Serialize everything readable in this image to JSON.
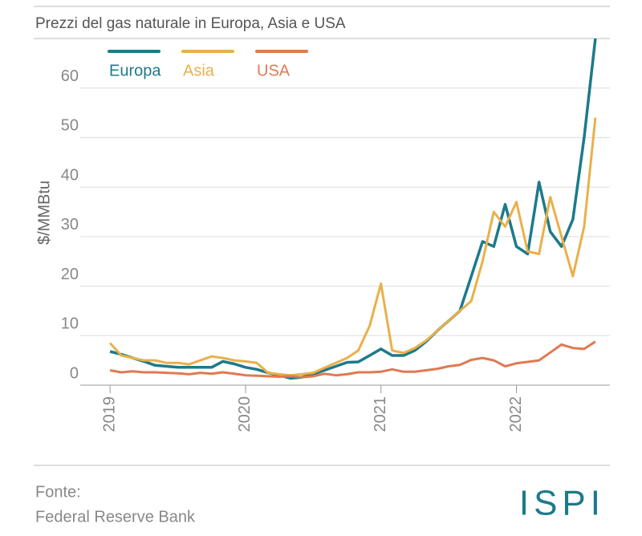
{
  "chart_data": {
    "type": "line",
    "title": "Prezzi del gas naturale  in Europa, Asia e USA",
    "y_label": "$/MMBtu",
    "source_label": "Fonte:",
    "source": "Federal Reserve Bank",
    "logo": "ISPI",
    "x": [
      2019,
      2019.083,
      2019.167,
      2019.25,
      2019.333,
      2019.417,
      2019.5,
      2019.583,
      2019.667,
      2019.75,
      2019.833,
      2019.917,
      2020,
      2020.083,
      2020.167,
      2020.25,
      2020.333,
      2020.417,
      2020.5,
      2020.583,
      2020.667,
      2020.75,
      2020.833,
      2020.917,
      2021,
      2021.083,
      2021.167,
      2021.25,
      2021.333,
      2021.417,
      2021.5,
      2021.583,
      2021.667,
      2021.75,
      2021.833,
      2021.917,
      2022,
      2022.083,
      2022.167,
      2022.25,
      2022.333,
      2022.417,
      2022.5,
      2022.583
    ],
    "series": [
      {
        "name": "Europa",
        "color": "#1d7a8a",
        "values": [
          6.8,
          6.2,
          5.5,
          4.8,
          4,
          3.8,
          3.6,
          3.6,
          3.6,
          3.6,
          4.8,
          4.3,
          3.6,
          3.2,
          2.5,
          2,
          1.4,
          1.6,
          2.2,
          3,
          3.8,
          4.6,
          4.7,
          6,
          7.3,
          6,
          6,
          7,
          8.8,
          11,
          13,
          15,
          22,
          29,
          28,
          36.5,
          28,
          26.5,
          41,
          31,
          28,
          33.5,
          50,
          70
        ]
      },
      {
        "name": "Asia",
        "color": "#e9b04a",
        "values": [
          8.5,
          6,
          5.5,
          5,
          5,
          4.5,
          4.5,
          4.2,
          5,
          5.8,
          5.5,
          5,
          4.8,
          4.5,
          2.5,
          2.2,
          2,
          2.2,
          2.5,
          3.5,
          4.5,
          5.5,
          7,
          12,
          20.5,
          7,
          6.5,
          7.5,
          9,
          11,
          13,
          15,
          17,
          25,
          35,
          32,
          37,
          27,
          26.5,
          38,
          30,
          22,
          32,
          54
        ]
      },
      {
        "name": "USA",
        "color": "#df7a51",
        "values": [
          3,
          2.6,
          2.8,
          2.6,
          2.6,
          2.5,
          2.4,
          2.2,
          2.5,
          2.3,
          2.6,
          2.3,
          2,
          1.9,
          1.8,
          1.7,
          1.8,
          1.6,
          1.8,
          2.3,
          2,
          2.2,
          2.6,
          2.6,
          2.7,
          3.2,
          2.7,
          2.7,
          3,
          3.3,
          3.8,
          4.1,
          5.1,
          5.5,
          5,
          3.8,
          4.4,
          4.7,
          5,
          6.6,
          8.2,
          7.5,
          7.3,
          8.8
        ]
      }
    ],
    "xlim": [
      2018.78,
      2022.69
    ],
    "xticks": [
      2019,
      2020,
      2021,
      2022
    ],
    "ylim": [
      0,
      70
    ],
    "yticks": [
      0,
      10,
      20,
      30,
      40,
      50,
      60
    ],
    "grid": true,
    "legend": "upper left"
  }
}
